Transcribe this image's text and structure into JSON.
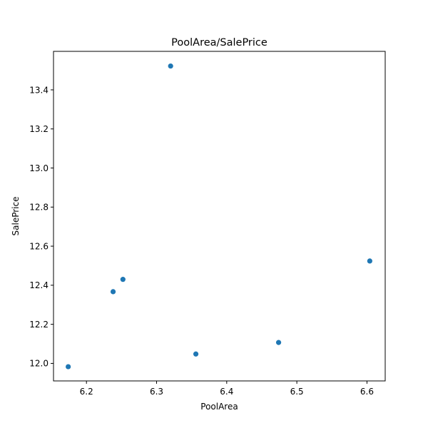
{
  "chart_data": {
    "type": "scatter",
    "title": "PoolArea/SalePrice",
    "xlabel": "PoolArea",
    "ylabel": "SalePrice",
    "xlim": [
      6.153,
      6.626
    ],
    "ylim": [
      11.9103,
      13.597
    ],
    "xticks": [
      {
        "value": 6.2,
        "label": "6.2"
      },
      {
        "value": 6.3,
        "label": "6.3"
      },
      {
        "value": 6.4,
        "label": "6.4"
      },
      {
        "value": 6.5,
        "label": "6.5"
      },
      {
        "value": 6.6,
        "label": "6.6"
      }
    ],
    "yticks": [
      {
        "value": 12.0,
        "label": "12.0"
      },
      {
        "value": 12.2,
        "label": "12.2"
      },
      {
        "value": 12.4,
        "label": "12.4"
      },
      {
        "value": 12.6,
        "label": "12.6"
      },
      {
        "value": 12.8,
        "label": "12.8"
      },
      {
        "value": 13.0,
        "label": "13.0"
      },
      {
        "value": 13.2,
        "label": "13.2"
      },
      {
        "value": 13.4,
        "label": "13.4"
      }
    ],
    "points": [
      {
        "x": 6.174,
        "y": 11.983
      },
      {
        "x": 6.238,
        "y": 12.367
      },
      {
        "x": 6.252,
        "y": 12.43
      },
      {
        "x": 6.32,
        "y": 13.522
      },
      {
        "x": 6.356,
        "y": 12.048
      },
      {
        "x": 6.474,
        "y": 12.107
      },
      {
        "x": 6.604,
        "y": 12.524
      }
    ],
    "marker_color": "#1f77b4",
    "grid": false,
    "legend": "none"
  }
}
